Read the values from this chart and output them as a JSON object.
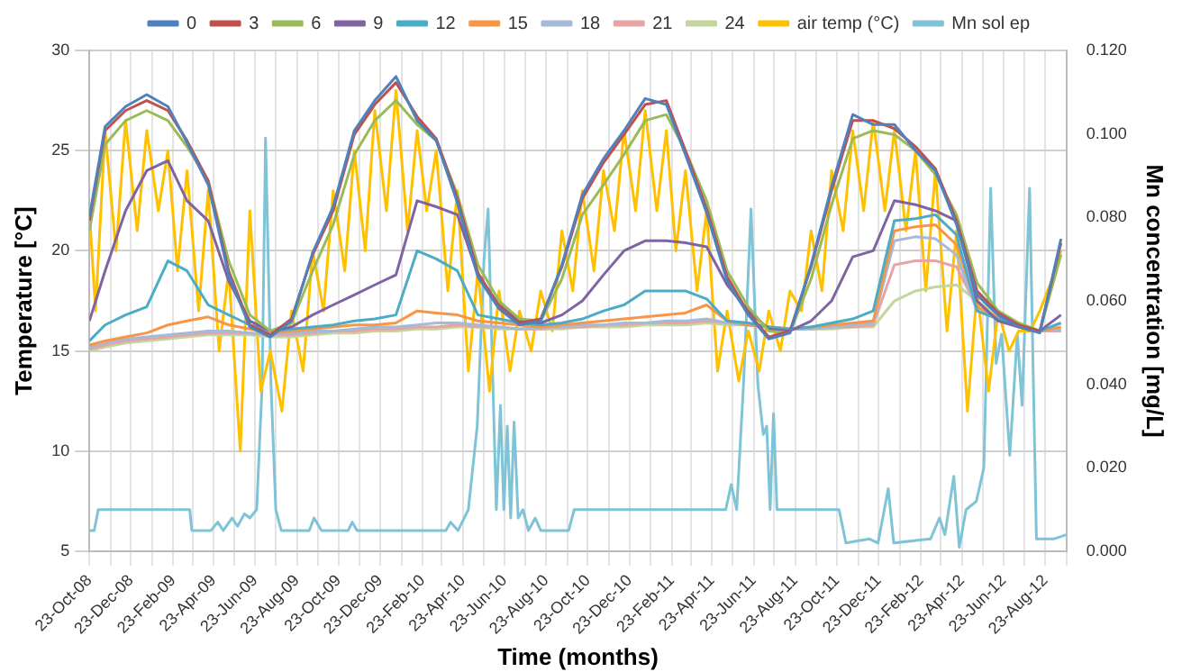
{
  "chart_data": {
    "type": "line",
    "xlabel": "Time (months)",
    "ylabel": "Temperature [°C]",
    "y2label": "Mn concentration [mg/L]",
    "x": [
      "2008-10-23",
      "2008-11-15",
      "2008-12-15",
      "2009-01-15",
      "2009-02-15",
      "2009-03-15",
      "2009-04-15",
      "2009-05-15",
      "2009-06-15",
      "2009-07-15",
      "2009-08-15",
      "2009-09-15",
      "2009-10-15",
      "2009-11-15",
      "2009-12-15",
      "2010-01-15",
      "2010-02-15",
      "2010-03-15",
      "2010-04-15",
      "2010-05-15",
      "2010-06-15",
      "2010-07-15",
      "2010-08-15",
      "2010-09-15",
      "2010-10-15",
      "2010-11-15",
      "2010-12-15",
      "2011-01-15",
      "2011-02-15",
      "2011-03-15",
      "2011-04-15",
      "2011-05-15",
      "2011-06-15",
      "2011-07-15",
      "2011-08-15",
      "2011-09-15",
      "2011-10-15",
      "2011-11-15",
      "2011-12-15",
      "2012-01-15",
      "2012-02-15",
      "2012-03-15",
      "2012-04-15",
      "2012-05-15",
      "2012-06-15",
      "2012-07-15",
      "2012-08-15",
      "2012-09-15"
    ],
    "series": [
      {
        "name": "0",
        "color": "#4f81bd",
        "values": [
          21.7,
          26.2,
          27.2,
          27.8,
          27.2,
          25.4,
          23.3,
          18.8,
          16.2,
          15.7,
          16.5,
          19.9,
          22.2,
          26,
          27.5,
          28.7,
          26.5,
          25.5,
          22.4,
          18.7,
          17.1,
          16.3,
          16.5,
          19.3,
          22.8,
          24.6,
          26,
          27.6,
          27.3,
          24.8,
          21.9,
          18.5,
          16.8,
          15.6,
          15.9,
          19.3,
          23.2,
          26.8,
          26.3,
          26.3,
          25,
          24,
          21.3,
          17.8,
          16.8,
          16.2,
          15.9,
          20.6
        ]
      },
      {
        "name": "3",
        "color": "#c0504d",
        "values": [
          21.5,
          26,
          27,
          27.5,
          27,
          25.5,
          23.5,
          19,
          16.3,
          15.8,
          16.6,
          19.8,
          22,
          25.8,
          27.3,
          28.4,
          26.7,
          25.6,
          22.6,
          18.9,
          17.2,
          16.4,
          16.6,
          19.2,
          22.6,
          24.4,
          25.8,
          27.3,
          27.5,
          25,
          22.1,
          18.7,
          16.9,
          15.7,
          16,
          19.2,
          23,
          26.5,
          26.5,
          26.1,
          25.2,
          24.1,
          21.5,
          18,
          16.9,
          16.3,
          16,
          20.4
        ]
      },
      {
        "name": "6",
        "color": "#9bbb59",
        "values": [
          21,
          25.3,
          26.5,
          27,
          26.5,
          25.2,
          23.5,
          19.5,
          16.8,
          16,
          16.4,
          19,
          21.3,
          24.8,
          26.5,
          27.5,
          26.3,
          25.5,
          22.8,
          19.3,
          17.5,
          16.6,
          16.5,
          18.6,
          21.8,
          23.3,
          24.8,
          26.5,
          26.8,
          25,
          22.5,
          19,
          17.2,
          16,
          15.9,
          18.6,
          22.3,
          25.6,
          26,
          25.8,
          25,
          23.8,
          21.8,
          18.4,
          17,
          16.4,
          16,
          19.8
        ]
      },
      {
        "name": "9",
        "color": "#8064a2",
        "values": [
          16.5,
          19,
          22,
          24,
          24.5,
          22.5,
          21.5,
          18.5,
          16.5,
          16,
          16.2,
          16.8,
          17.3,
          17.8,
          18.3,
          18.8,
          22.5,
          22.2,
          21.8,
          18.8,
          17.3,
          16.5,
          16.4,
          16.8,
          17.5,
          18.8,
          20,
          20.5,
          20.5,
          20.4,
          20.2,
          18.3,
          17,
          16.1,
          16,
          16.5,
          17.5,
          19.7,
          20,
          22.5,
          22.3,
          22,
          21.5,
          17.5,
          16.5,
          16.2,
          16,
          16.8
        ]
      },
      {
        "name": "12",
        "color": "#4bacc6",
        "values": [
          15.5,
          16.3,
          16.8,
          17.2,
          19.5,
          19,
          17.3,
          16.8,
          16.3,
          16,
          16.1,
          16.2,
          16.3,
          16.5,
          16.6,
          16.8,
          20,
          19.6,
          19,
          16.8,
          16.6,
          16.4,
          16.3,
          16.4,
          16.6,
          17,
          17.3,
          18,
          18,
          18,
          17.6,
          16.5,
          16.4,
          16.2,
          16.1,
          16.2,
          16.4,
          16.6,
          17,
          21.5,
          21.6,
          21.8,
          20.8,
          17,
          16.6,
          16.3,
          16,
          16.4
        ]
      },
      {
        "name": "15",
        "color": "#f79646",
        "values": [
          15.3,
          15.5,
          15.7,
          15.9,
          16.3,
          16.5,
          16.7,
          16.3,
          16.1,
          15.9,
          16,
          16.1,
          16.2,
          16.3,
          16.3,
          16.4,
          17,
          16.9,
          16.8,
          16.5,
          16.4,
          16.3,
          16.2,
          16.3,
          16.4,
          16.5,
          16.6,
          16.7,
          16.8,
          16.9,
          17.3,
          16.5,
          16.3,
          16.2,
          16.1,
          16.2,
          16.3,
          16.4,
          16.5,
          21,
          21.2,
          21.3,
          20.3,
          17.2,
          16.7,
          16.3,
          16,
          16.2
        ]
      },
      {
        "name": "18",
        "color": "#a5b9d9",
        "values": [
          15.2,
          15.4,
          15.6,
          15.7,
          15.8,
          15.9,
          16,
          16,
          15.9,
          15.8,
          15.9,
          16,
          16,
          16.1,
          16.2,
          16.2,
          16.3,
          16.4,
          16.4,
          16.3,
          16.2,
          16.1,
          16.2,
          16.2,
          16.3,
          16.3,
          16.4,
          16.4,
          16.5,
          16.5,
          16.6,
          16.4,
          16.3,
          16.2,
          16.1,
          16.1,
          16.2,
          16.3,
          16.4,
          20.5,
          20.7,
          20.6,
          19.8,
          17,
          16.6,
          16.2,
          16,
          16.1
        ]
      },
      {
        "name": "21",
        "color": "#e6a5a4",
        "values": [
          15.1,
          15.3,
          15.5,
          15.6,
          15.7,
          15.8,
          15.9,
          15.9,
          15.9,
          15.8,
          15.8,
          15.9,
          16,
          16,
          16.1,
          16.1,
          16.2,
          16.2,
          16.3,
          16.2,
          16.2,
          16.1,
          16.1,
          16.2,
          16.2,
          16.3,
          16.3,
          16.4,
          16.4,
          16.4,
          16.5,
          16.4,
          16.3,
          16.2,
          16.1,
          16.1,
          16.2,
          16.2,
          16.3,
          19.3,
          19.5,
          19.5,
          19.2,
          17.2,
          16.6,
          null,
          16,
          16
        ]
      },
      {
        "name": "24",
        "color": "#c3d69b",
        "values": [
          15,
          15.2,
          15.4,
          15.5,
          15.6,
          15.7,
          15.8,
          15.8,
          15.8,
          15.7,
          15.7,
          15.8,
          15.9,
          15.9,
          16,
          16,
          16.1,
          16.1,
          16.2,
          16.2,
          16.1,
          16.1,
          16.1,
          16.1,
          16.2,
          16.2,
          16.2,
          16.3,
          16.3,
          16.3,
          16.4,
          16.3,
          16.3,
          16.2,
          16.1,
          16.1,
          16.1,
          16.2,
          16.2,
          17.5,
          18,
          18.2,
          18.3,
          17.5,
          16.8,
          16.3,
          16,
          16
        ]
      },
      {
        "name": "air temp (°C)",
        "color": "#ffc000",
        "x": [
          "2008-10-23",
          "2008-11-01",
          "2008-11-15",
          "2008-12-01",
          "2008-12-15",
          "2009-01-01",
          "2009-01-15",
          "2009-02-01",
          "2009-02-15",
          "2009-03-01",
          "2009-03-15",
          "2009-04-01",
          "2009-04-15",
          "2009-05-01",
          "2009-05-15",
          "2009-06-01",
          "2009-06-15",
          "2009-07-01",
          "2009-07-15",
          "2009-08-01",
          "2009-08-15",
          "2009-09-01",
          "2009-09-15",
          "2009-10-01",
          "2009-10-15",
          "2009-11-01",
          "2009-11-15",
          "2009-12-01",
          "2009-12-15",
          "2010-01-01",
          "2010-01-15",
          "2010-02-01",
          "2010-02-15",
          "2010-03-01",
          "2010-03-15",
          "2010-04-01",
          "2010-04-15",
          "2010-05-01",
          "2010-05-15",
          "2010-06-01",
          "2010-06-15",
          "2010-07-01",
          "2010-07-15",
          "2010-08-01",
          "2010-08-15",
          "2010-09-01",
          "2010-09-15",
          "2010-10-01",
          "2010-10-15",
          "2010-11-01",
          "2010-11-15",
          "2010-12-01",
          "2010-12-15",
          "2011-01-01",
          "2011-01-15",
          "2011-02-01",
          "2011-02-15",
          "2011-03-01",
          "2011-03-15",
          "2011-04-01",
          "2011-04-15",
          "2011-05-01",
          "2011-05-15",
          "2011-06-01",
          "2011-06-15",
          "2011-07-01",
          "2011-07-15",
          "2011-08-01",
          "2011-08-15",
          "2011-09-01",
          "2011-09-15",
          "2011-10-01",
          "2011-10-15",
          "2011-11-01",
          "2011-11-15",
          "2011-12-01",
          "2011-12-15",
          "2012-01-01",
          "2012-01-15",
          "2012-02-01",
          "2012-02-15",
          "2012-03-01",
          "2012-03-15",
          "2012-04-01",
          "2012-04-15",
          "2012-05-01",
          "2012-05-15",
          "2012-06-01",
          "2012-06-15",
          "2012-07-01",
          "2012-07-15",
          "2012-08-01",
          "2012-08-15",
          "2012-09-01",
          "2012-09-15"
        ],
        "values": [
          22,
          17,
          26,
          20,
          26.5,
          21,
          26,
          22,
          25,
          19,
          24,
          17,
          23,
          15,
          19,
          10,
          22,
          13,
          15,
          12,
          17,
          14,
          20,
          17,
          23,
          19,
          25,
          20,
          27,
          22,
          28,
          21,
          26,
          22,
          25,
          18,
          23,
          14,
          19,
          13,
          18,
          14,
          17,
          15,
          18,
          16,
          21,
          18,
          23,
          19,
          24,
          21,
          26,
          22,
          27,
          22,
          26,
          20,
          24,
          18,
          22,
          14,
          17,
          13.5,
          16,
          14,
          17,
          15,
          18,
          17,
          21,
          18,
          24,
          21,
          26,
          22,
          26.5,
          22,
          26,
          21,
          25,
          18,
          24,
          16,
          21,
          12,
          18,
          13,
          17,
          15,
          16,
          16,
          17,
          18.5,
          20
        ]
      },
      {
        "name": "Mn sol ep",
        "color": "#7fc3d6",
        "axis": "y2",
        "x": [
          "2008-10-23",
          "2008-10-30",
          "2008-11-05",
          "2009-03-19",
          "2009-03-22",
          "2009-04-19",
          "2009-04-29",
          "2009-05-07",
          "2009-05-20",
          "2009-05-28",
          "2009-06-07",
          "2009-06-15",
          "2009-06-25",
          "2009-07-03",
          "2009-07-08",
          "2009-07-16",
          "2009-07-23",
          "2009-07-31",
          "2009-09-10",
          "2009-09-17",
          "2009-09-28",
          "2009-11-06",
          "2009-11-12",
          "2009-11-19",
          "2010-03-29",
          "2010-04-05",
          "2010-04-16",
          "2010-05-01",
          "2010-05-14",
          "2010-05-24",
          "2010-05-30",
          "2010-06-06",
          "2010-06-11",
          "2010-06-17",
          "2010-06-22",
          "2010-06-27",
          "2010-07-02",
          "2010-07-07",
          "2010-07-13",
          "2010-07-20",
          "2010-07-28",
          "2010-08-07",
          "2010-08-15",
          "2010-09-25",
          "2010-10-03",
          "2011-05-13",
          "2011-05-21",
          "2011-05-29",
          "2011-06-08",
          "2011-06-19",
          "2011-06-29",
          "2011-07-07",
          "2011-07-12",
          "2011-07-17",
          "2011-07-22",
          "2011-07-27",
          "2011-10-26",
          "2011-11-05",
          "2011-12-09",
          "2011-12-22",
          "2012-01-06",
          "2012-01-14",
          "2012-03-08",
          "2012-03-21",
          "2012-03-29",
          "2012-04-11",
          "2012-04-19",
          "2012-04-29",
          "2012-05-14",
          "2012-05-25",
          "2012-06-04",
          "2012-06-12",
          "2012-06-20",
          "2012-07-02",
          "2012-07-13",
          "2012-07-20",
          "2012-07-31",
          "2012-08-10",
          "2012-09-05",
          "2012-09-23"
        ],
        "values": [
          0.005,
          0.005,
          0.01,
          0.01,
          0.005,
          0.005,
          0.007,
          0.005,
          0.008,
          0.006,
          0.009,
          0.008,
          0.01,
          0.04,
          0.099,
          0.04,
          0.01,
          0.005,
          0.005,
          0.008,
          0.005,
          0.005,
          0.007,
          0.005,
          0.005,
          0.007,
          0.005,
          0.01,
          0.03,
          0.07,
          0.082,
          0.04,
          0.01,
          0.035,
          0.01,
          0.03,
          0.008,
          0.031,
          0.008,
          0.01,
          0.005,
          0.008,
          0.005,
          0.005,
          0.01,
          0.01,
          0.016,
          0.01,
          0.04,
          0.082,
          0.04,
          0.028,
          0.03,
          0.01,
          0.033,
          0.01,
          0.01,
          0.002,
          0.003,
          0.002,
          0.015,
          0.002,
          0.003,
          0.008,
          0.004,
          0.018,
          0.001,
          0.01,
          0.012,
          0.02,
          0.087,
          0.045,
          0.052,
          0.023,
          0.052,
          0.035,
          0.087,
          0.003,
          0.003,
          0.004
        ]
      }
    ],
    "xlim": [
      "2008-10-23",
      "2012-09-23"
    ],
    "xticks": [
      {
        "value": "2008-10-23",
        "label": "23-Oct-08"
      },
      {
        "value": "2008-11-23",
        "label": null
      },
      {
        "value": "2008-12-23",
        "label": "23-Dec-08"
      },
      {
        "value": "2009-01-23",
        "label": null
      },
      {
        "value": "2009-02-23",
        "label": "23-Feb-09"
      },
      {
        "value": "2009-03-23",
        "label": null
      },
      {
        "value": "2009-04-23",
        "label": "23-Apr-09"
      },
      {
        "value": "2009-05-23",
        "label": null
      },
      {
        "value": "2009-06-23",
        "label": "23-Jun-09"
      },
      {
        "value": "2009-07-23",
        "label": null
      },
      {
        "value": "2009-08-23",
        "label": "23-Aug-09"
      },
      {
        "value": "2009-09-23",
        "label": null
      },
      {
        "value": "2009-10-23",
        "label": "23-Oct-09"
      },
      {
        "value": "2009-11-23",
        "label": null
      },
      {
        "value": "2009-12-23",
        "label": "23-Dec-09"
      },
      {
        "value": "2010-01-23",
        "label": null
      },
      {
        "value": "2010-02-23",
        "label": "23-Feb-10"
      },
      {
        "value": "2010-03-23",
        "label": null
      },
      {
        "value": "2010-04-23",
        "label": "23-Apr-10"
      },
      {
        "value": "2010-05-23",
        "label": null
      },
      {
        "value": "2010-06-23",
        "label": "23-Jun-10"
      },
      {
        "value": "2010-07-23",
        "label": null
      },
      {
        "value": "2010-08-23",
        "label": "23-Aug-10"
      },
      {
        "value": "2010-09-23",
        "label": null
      },
      {
        "value": "2010-10-23",
        "label": "23-Oct-10"
      },
      {
        "value": "2010-11-23",
        "label": null
      },
      {
        "value": "2010-12-23",
        "label": "23-Dec-10"
      },
      {
        "value": "2011-01-23",
        "label": null
      },
      {
        "value": "2011-02-23",
        "label": "23-Feb-11"
      },
      {
        "value": "2011-03-23",
        "label": null
      },
      {
        "value": "2011-04-23",
        "label": "23-Apr-11"
      },
      {
        "value": "2011-05-23",
        "label": null
      },
      {
        "value": "2011-06-23",
        "label": "23-Jun-11"
      },
      {
        "value": "2011-07-23",
        "label": null
      },
      {
        "value": "2011-08-23",
        "label": "23-Aug-11"
      },
      {
        "value": "2011-09-23",
        "label": null
      },
      {
        "value": "2011-10-23",
        "label": "23-Oct-11"
      },
      {
        "value": "2011-11-23",
        "label": null
      },
      {
        "value": "2011-12-23",
        "label": "23-Dec-11"
      },
      {
        "value": "2012-01-23",
        "label": null
      },
      {
        "value": "2012-02-23",
        "label": "23-Feb-12"
      },
      {
        "value": "2012-03-23",
        "label": null
      },
      {
        "value": "2012-04-23",
        "label": "23-Apr-12"
      },
      {
        "value": "2012-05-23",
        "label": null
      },
      {
        "value": "2012-06-23",
        "label": "23-Jun-12"
      },
      {
        "value": "2012-07-23",
        "label": null
      },
      {
        "value": "2012-08-23",
        "label": "23-Aug-12"
      },
      {
        "value": "2012-09-23",
        "label": null
      }
    ],
    "ylim": [
      5,
      30
    ],
    "yticks": [
      5,
      10,
      15,
      20,
      25,
      30
    ],
    "y2lim": [
      0,
      0.12
    ],
    "y2ticks": [
      {
        "value": 0,
        "label": "0.000"
      },
      {
        "value": 0.02,
        "label": "0.020"
      },
      {
        "value": 0.04,
        "label": "0.040"
      },
      {
        "value": 0.06,
        "label": "0.060"
      },
      {
        "value": 0.08,
        "label": "0.080"
      },
      {
        "value": 0.1,
        "label": "0.100"
      },
      {
        "value": 0.12,
        "label": "0.120"
      }
    ],
    "grid": true,
    "legend": "top",
    "marker": "none",
    "line_style": "solid"
  }
}
